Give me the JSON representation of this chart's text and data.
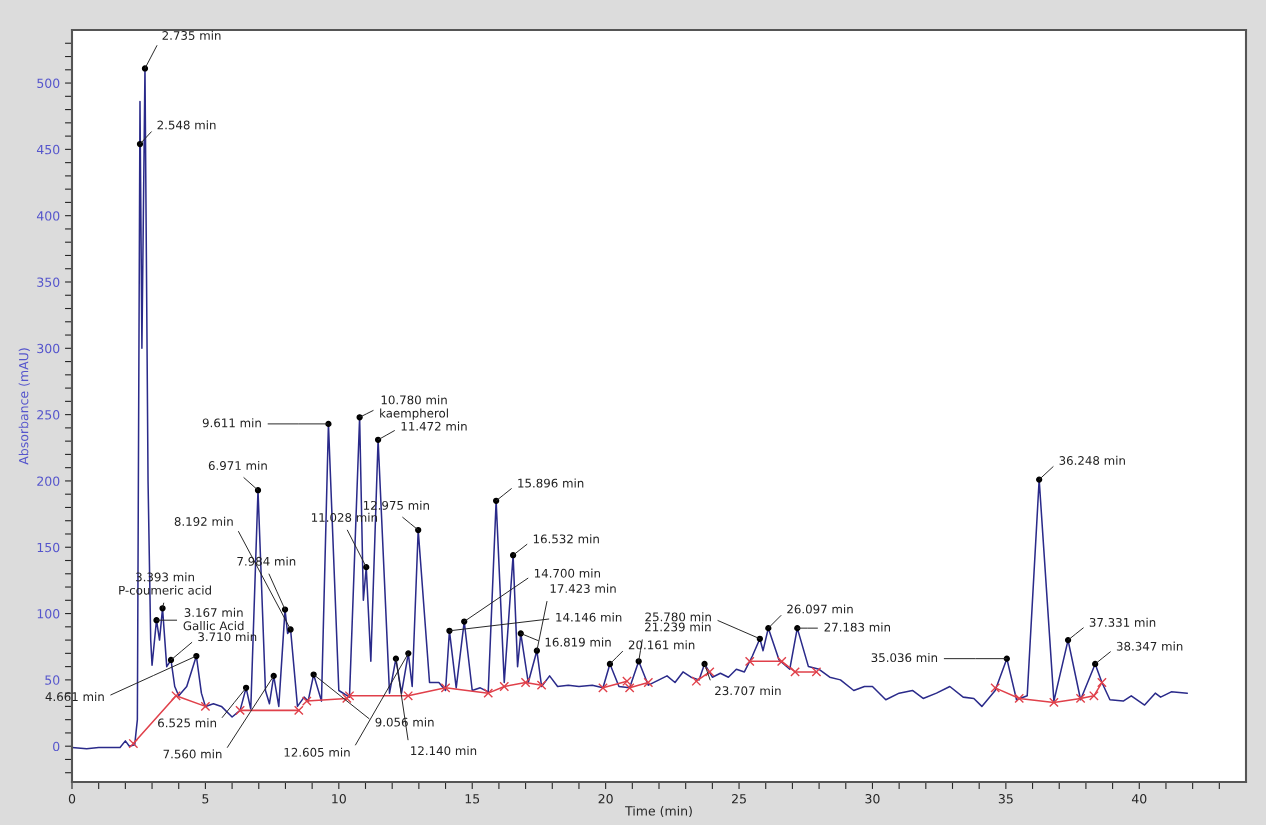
{
  "chart_data": {
    "type": "line",
    "xlabel": "Time (min)",
    "ylabel": "Absorbance (mAU)",
    "xlim": [
      0,
      44
    ],
    "ylim": [
      -27,
      540
    ],
    "xticks": [
      0,
      {
        "value": 1,
        "label": null
      },
      {
        "value": 2,
        "label": null
      },
      {
        "value": 3,
        "label": null
      },
      {
        "value": 4,
        "label": null
      },
      5,
      {
        "value": 6,
        "label": null
      },
      {
        "value": 7,
        "label": null
      },
      {
        "value": 8,
        "label": null
      },
      {
        "value": 9,
        "label": null
      },
      10,
      {
        "value": 11,
        "label": null
      },
      {
        "value": 12,
        "label": null
      },
      {
        "value": 13,
        "label": null
      },
      {
        "value": 14,
        "label": null
      },
      15,
      {
        "value": 16,
        "label": null
      },
      {
        "value": 17,
        "label": null
      },
      {
        "value": 18,
        "label": null
      },
      {
        "value": 19,
        "label": null
      },
      20,
      {
        "value": 21,
        "label": null
      },
      {
        "value": 22,
        "label": null
      },
      {
        "value": 23,
        "label": null
      },
      {
        "value": 24,
        "label": null
      },
      25,
      {
        "value": 26,
        "label": null
      },
      {
        "value": 27,
        "label": null
      },
      {
        "value": 28,
        "label": null
      },
      {
        "value": 29,
        "label": null
      },
      30,
      {
        "value": 31,
        "label": null
      },
      {
        "value": 32,
        "label": null
      },
      {
        "value": 33,
        "label": null
      },
      {
        "value": 34,
        "label": null
      },
      35,
      {
        "value": 36,
        "label": null
      },
      {
        "value": 37,
        "label": null
      },
      {
        "value": 38,
        "label": null
      },
      {
        "value": 39,
        "label": null
      },
      40,
      {
        "value": 41,
        "label": null
      },
      {
        "value": 42,
        "label": null
      },
      {
        "value": 43,
        "label": null
      }
    ],
    "yticks": [
      {
        "value": -20,
        "label": null
      },
      {
        "value": -10,
        "label": null
      },
      0,
      {
        "value": 10,
        "label": null
      },
      {
        "value": 20,
        "label": null
      },
      {
        "value": 30,
        "label": null
      },
      {
        "value": 40,
        "label": null
      },
      50,
      {
        "value": 60,
        "label": null
      },
      {
        "value": 70,
        "label": null
      },
      {
        "value": 80,
        "label": null
      },
      {
        "value": 90,
        "label": null
      },
      100,
      {
        "value": 110,
        "label": null
      },
      {
        "value": 120,
        "label": null
      },
      {
        "value": 130,
        "label": null
      },
      {
        "value": 140,
        "label": null
      },
      150,
      {
        "value": 160,
        "label": null
      },
      {
        "value": 170,
        "label": null
      },
      {
        "value": 180,
        "label": null
      },
      {
        "value": 190,
        "label": null
      },
      200,
      {
        "value": 210,
        "label": null
      },
      {
        "value": 220,
        "label": null
      },
      {
        "value": 230,
        "label": null
      },
      {
        "value": 240,
        "label": null
      },
      250,
      {
        "value": 260,
        "label": null
      },
      {
        "value": 270,
        "label": null
      },
      {
        "value": 280,
        "label": null
      },
      {
        "value": 290,
        "label": null
      },
      300,
      {
        "value": 310,
        "label": null
      },
      {
        "value": 320,
        "label": null
      },
      {
        "value": 330,
        "label": null
      },
      {
        "value": 340,
        "label": null
      },
      350,
      {
        "value": 360,
        "label": null
      },
      {
        "value": 370,
        "label": null
      },
      {
        "value": 380,
        "label": null
      },
      {
        "value": 390,
        "label": null
      },
      400,
      {
        "value": 410,
        "label": null
      },
      {
        "value": 420,
        "label": null
      },
      {
        "value": 430,
        "label": null
      },
      {
        "value": 440,
        "label": null
      },
      450,
      {
        "value": 460,
        "label": null
      },
      {
        "value": 470,
        "label": null
      },
      {
        "value": 480,
        "label": null
      },
      {
        "value": 490,
        "label": null
      },
      500,
      {
        "value": 510,
        "label": null
      },
      {
        "value": 520,
        "label": null
      },
      {
        "value": 530,
        "label": null
      }
    ],
    "grid": false,
    "legend": false,
    "series": [
      {
        "color": "#2a2a8a",
        "x": [
          0,
          0.55,
          1.0,
          1.8,
          2.0,
          2.15,
          2.35,
          2.45,
          2.548,
          2.62,
          2.735,
          2.85,
          2.95,
          3.0,
          3.167,
          3.28,
          3.393,
          3.55,
          3.71,
          3.85,
          4.0,
          4.3,
          4.661,
          4.85,
          5.0,
          5.3,
          5.6,
          6.0,
          6.3,
          6.525,
          6.7,
          6.971,
          7.25,
          7.4,
          7.56,
          7.75,
          7.984,
          8.08,
          8.192,
          8.45,
          8.7,
          8.85,
          9.056,
          9.35,
          9.611,
          10.0,
          10.4,
          10.78,
          10.92,
          11.028,
          11.2,
          11.472,
          11.9,
          12.14,
          12.35,
          12.605,
          12.75,
          12.975,
          13.4,
          13.75,
          14.0,
          14.146,
          14.4,
          14.7,
          15.0,
          15.3,
          15.6,
          15.896,
          16.2,
          16.532,
          16.7,
          16.819,
          17.1,
          17.423,
          17.6,
          17.9,
          18.2,
          18.6,
          19.0,
          19.5,
          19.9,
          20.161,
          20.5,
          20.9,
          21.239,
          21.6,
          22.0,
          22.3,
          22.6,
          22.9,
          23.2,
          23.5,
          23.707,
          24.0,
          24.3,
          24.6,
          24.9,
          25.2,
          25.5,
          25.78,
          25.9,
          26.097,
          26.5,
          26.9,
          27.183,
          27.6,
          28.0,
          28.4,
          28.8,
          29.3,
          29.7,
          30.0,
          30.5,
          31.0,
          31.5,
          31.9,
          32.4,
          32.9,
          33.4,
          33.8,
          34.1,
          34.6,
          35.036,
          35.4,
          35.8,
          36.248,
          36.8,
          37.331,
          37.8,
          38.347,
          38.6,
          38.9,
          39.4,
          39.7,
          40.2,
          40.6,
          40.8,
          41.2,
          41.8
        ],
        "values": [
          -1,
          -2,
          -1,
          -1,
          4,
          0,
          1,
          20,
          486,
          300,
          511,
          200,
          80,
          61,
          95,
          80,
          104,
          60,
          65,
          45,
          38,
          45,
          68,
          40,
          30,
          32,
          30,
          22,
          27,
          44,
          28,
          193,
          42,
          32,
          53,
          30,
          103,
          85,
          88,
          30,
          37,
          34,
          54,
          34,
          243,
          42,
          37,
          248,
          110,
          135,
          64,
          231,
          40,
          66,
          40,
          70,
          45,
          163,
          48,
          48,
          42,
          87,
          44,
          94,
          42,
          44,
          41,
          185,
          48,
          144,
          60,
          85,
          48,
          72,
          45,
          53,
          45,
          46,
          45,
          46,
          44,
          62,
          45,
          44,
          64,
          46,
          50,
          53,
          48,
          56,
          52,
          50,
          62,
          52,
          55,
          52,
          58,
          56,
          68,
          81,
          72,
          89,
          65,
          58,
          89,
          60,
          58,
          52,
          50,
          42,
          45,
          45,
          35,
          40,
          42,
          36,
          40,
          45,
          37,
          36,
          30,
          42,
          66,
          35,
          38,
          201,
          34,
          80,
          35,
          62,
          48,
          35,
          34,
          38,
          31,
          40,
          37,
          41,
          40
        ]
      },
      {
        "color": "#e0404a",
        "marker": "cross",
        "x": [
          2.3,
          3.9,
          5.0
        ],
        "values": [
          2,
          38,
          30
        ]
      },
      {
        "color": "#e0404a",
        "marker": "cross",
        "x": [
          6.3,
          8.5
        ],
        "values": [
          27,
          27
        ]
      },
      {
        "color": "#e0404a",
        "marker": "cross",
        "x": [
          8.8,
          10.3
        ],
        "values": [
          34,
          36
        ]
      },
      {
        "color": "#e0404a",
        "marker": "cross",
        "x": [
          10.4,
          12.6,
          14.0,
          15.6,
          16.2,
          17.0,
          17.6
        ],
        "values": [
          38,
          38,
          44,
          40,
          45,
          48,
          46
        ]
      },
      {
        "color": "#e0404a",
        "marker": "cross",
        "x": [
          19.9,
          20.8
        ],
        "values": [
          44,
          49
        ]
      },
      {
        "color": "#e0404a",
        "marker": "cross",
        "x": [
          20.9,
          21.6
        ],
        "values": [
          44,
          48
        ]
      },
      {
        "color": "#e0404a",
        "marker": "cross",
        "x": [
          23.4,
          23.9
        ],
        "values": [
          49,
          56
        ]
      },
      {
        "color": "#e0404a",
        "marker": "cross",
        "x": [
          25.4,
          26.6,
          27.1,
          27.9
        ],
        "values": [
          64,
          64,
          56,
          56
        ]
      },
      {
        "color": "#e0404a",
        "marker": "cross",
        "x": [
          34.6,
          35.5,
          36.8,
          37.8,
          38.3,
          38.6
        ],
        "values": [
          44,
          36,
          33,
          36,
          38,
          48
        ]
      }
    ],
    "annotations": [
      {
        "text": "2.735 min",
        "x": 2.735,
        "y": 511
      },
      {
        "text": "2.548 min",
        "x": 2.548,
        "y": 454
      },
      {
        "text": "3.393 min\nP-coumeric acid",
        "x": 3.393,
        "y": 104
      },
      {
        "text": "3.167 min\nGallic Acid",
        "x": 3.167,
        "y": 95
      },
      {
        "text": "3.710 min",
        "x": 3.71,
        "y": 65
      },
      {
        "text": "4.661 min",
        "x": 4.661,
        "y": 68
      },
      {
        "text": "6.525 min",
        "x": 6.525,
        "y": 44
      },
      {
        "text": "7.560 min",
        "x": 7.56,
        "y": 53
      },
      {
        "text": "6.971 min",
        "x": 6.971,
        "y": 193
      },
      {
        "text": "8.192 min",
        "x": 8.192,
        "y": 88
      },
      {
        "text": "7.984 min",
        "x": 7.984,
        "y": 103
      },
      {
        "text": "9.611 min",
        "x": 9.611,
        "y": 243
      },
      {
        "text": "9.056 min",
        "x": 9.056,
        "y": 54
      },
      {
        "text": "10.780 min\nkaempherol",
        "x": 10.78,
        "y": 248
      },
      {
        "text": "11.472 min",
        "x": 11.472,
        "y": 231
      },
      {
        "text": "11.028 min",
        "x": 11.028,
        "y": 135
      },
      {
        "text": "12.975 min",
        "x": 12.975,
        "y": 163
      },
      {
        "text": "12.605 min",
        "x": 12.605,
        "y": 70
      },
      {
        "text": "12.140 min",
        "x": 12.14,
        "y": 66
      },
      {
        "text": "14.146 min",
        "x": 14.146,
        "y": 87
      },
      {
        "text": "14.700 min",
        "x": 14.7,
        "y": 94
      },
      {
        "text": "15.896 min",
        "x": 15.896,
        "y": 185
      },
      {
        "text": "16.532 min",
        "x": 16.532,
        "y": 144
      },
      {
        "text": "16.819 min",
        "x": 16.819,
        "y": 85
      },
      {
        "text": "17.423 min",
        "x": 17.423,
        "y": 72
      },
      {
        "text": "20.161 min",
        "x": 20.161,
        "y": 62
      },
      {
        "text": "21.239 min",
        "x": 21.239,
        "y": 64
      },
      {
        "text": "23.707 min",
        "x": 23.707,
        "y": 62
      },
      {
        "text": "25.780 min",
        "x": 25.78,
        "y": 81
      },
      {
        "text": "26.097 min",
        "x": 26.097,
        "y": 89
      },
      {
        "text": "27.183 min",
        "x": 27.183,
        "y": 89
      },
      {
        "text": "35.036 min",
        "x": 35.036,
        "y": 66
      },
      {
        "text": "36.248 min",
        "x": 36.248,
        "y": 201
      },
      {
        "text": "37.331 min",
        "x": 37.331,
        "y": 80
      },
      {
        "text": "38.347 min",
        "x": 38.347,
        "y": 62
      }
    ]
  }
}
